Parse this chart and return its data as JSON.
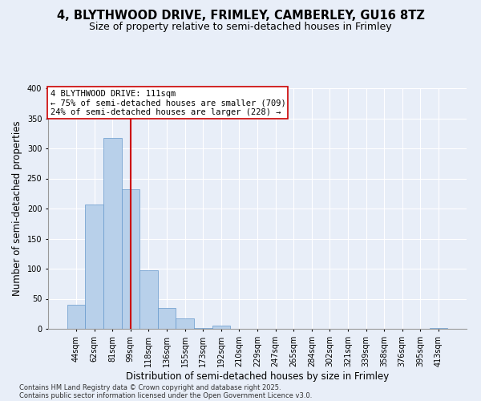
{
  "title_line1": "4, BLYTHWOOD DRIVE, FRIMLEY, CAMBERLEY, GU16 8TZ",
  "title_line2": "Size of property relative to semi-detached houses in Frimley",
  "xlabel": "Distribution of semi-detached houses by size in Frimley",
  "ylabel": "Number of semi-detached properties",
  "categories": [
    "44sqm",
    "62sqm",
    "81sqm",
    "99sqm",
    "118sqm",
    "136sqm",
    "155sqm",
    "173sqm",
    "192sqm",
    "210sqm",
    "229sqm",
    "247sqm",
    "265sqm",
    "284sqm",
    "302sqm",
    "321sqm",
    "339sqm",
    "358sqm",
    "376sqm",
    "395sqm",
    "413sqm"
  ],
  "values": [
    40,
    207,
    318,
    232,
    98,
    35,
    17,
    2,
    5,
    0,
    0,
    0,
    0,
    0,
    0,
    0,
    0,
    0,
    0,
    0,
    1
  ],
  "bar_color": "#b8d0ea",
  "bar_edge_color": "#6699cc",
  "vline_x": 3,
  "vline_color": "#cc0000",
  "annotation_title": "4 BLYTHWOOD DRIVE: 111sqm",
  "annotation_line1": "← 75% of semi-detached houses are smaller (709)",
  "annotation_line2": "24% of semi-detached houses are larger (228) →",
  "annotation_box_color": "#cc0000",
  "footnote1": "Contains HM Land Registry data © Crown copyright and database right 2025.",
  "footnote2": "Contains public sector information licensed under the Open Government Licence v3.0.",
  "background_color": "#e8eef8",
  "plot_background_color": "#e8eef8",
  "ylim": [
    0,
    400
  ],
  "yticks": [
    0,
    50,
    100,
    150,
    200,
    250,
    300,
    350,
    400
  ],
  "grid_color": "#ffffff",
  "title_fontsize": 10.5,
  "subtitle_fontsize": 9,
  "axis_label_fontsize": 8.5,
  "tick_fontsize": 7,
  "annotation_fontsize": 7.5,
  "footnote_fontsize": 6
}
